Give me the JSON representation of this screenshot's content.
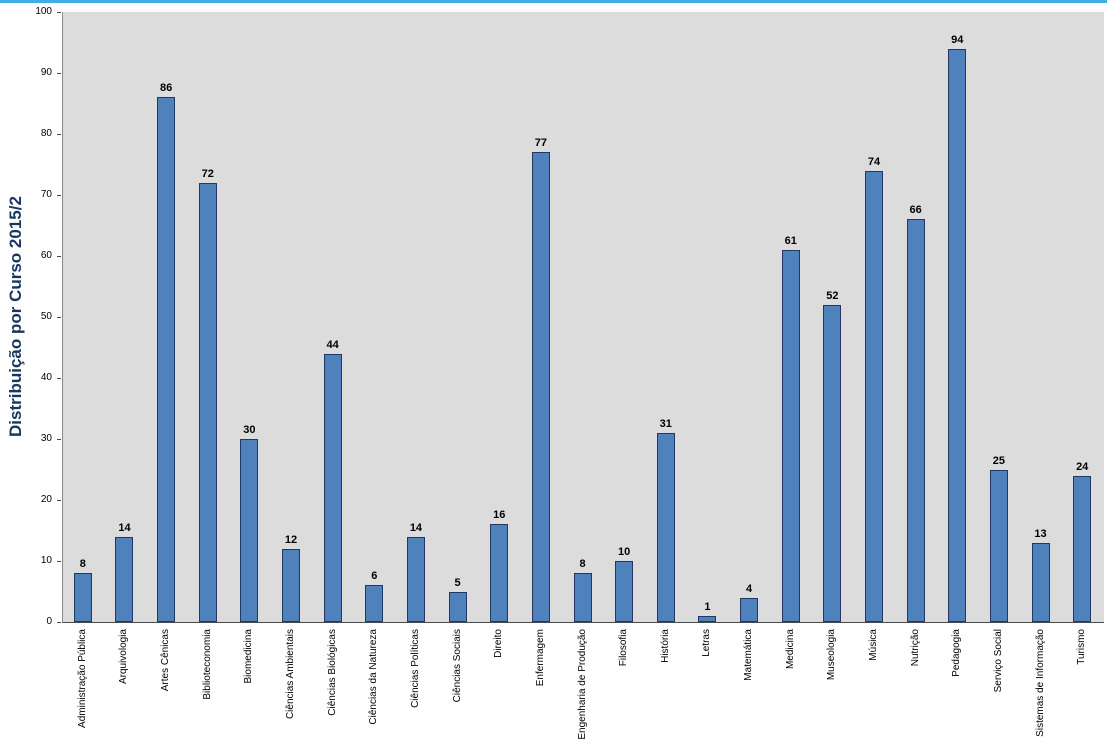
{
  "page": {
    "accent_color": "#41AFE6"
  },
  "chart_data": {
    "type": "bar",
    "title": "",
    "xlabel": "",
    "ylabel": "Distribuição por Curso 2015/2",
    "ylim": [
      0,
      100
    ],
    "ytick_step": 10,
    "grid": false,
    "legend": null,
    "value_labels_shown": true,
    "plot_bg": "#DCDCDC",
    "bar_color": "#4F81BD",
    "bar_border_color": "#1F3864",
    "title_color": "#17375E",
    "categories": [
      "Administração Pública",
      "Arquivologia",
      "Artes Cênicas",
      "Biblioteconomia",
      "Biomedicina",
      "Ciências Ambientais",
      "Ciências Biológicas",
      "Ciências da Natureza",
      "Ciências Políticas",
      "Ciências Sociais",
      "Direito",
      "Enfermagem",
      "Engenharia de Produção",
      "Filosofia",
      "História",
      "Letras",
      "Matemática",
      "Medicina",
      "Museologia",
      "Música",
      "Nutrição",
      "Pedagogia",
      "Serviço Social",
      "Sistemas de Informação",
      "Turismo"
    ],
    "values": [
      8,
      14,
      86,
      72,
      30,
      12,
      44,
      6,
      14,
      5,
      16,
      77,
      8,
      10,
      31,
      1,
      4,
      61,
      52,
      74,
      66,
      94,
      25,
      13,
      24
    ]
  }
}
